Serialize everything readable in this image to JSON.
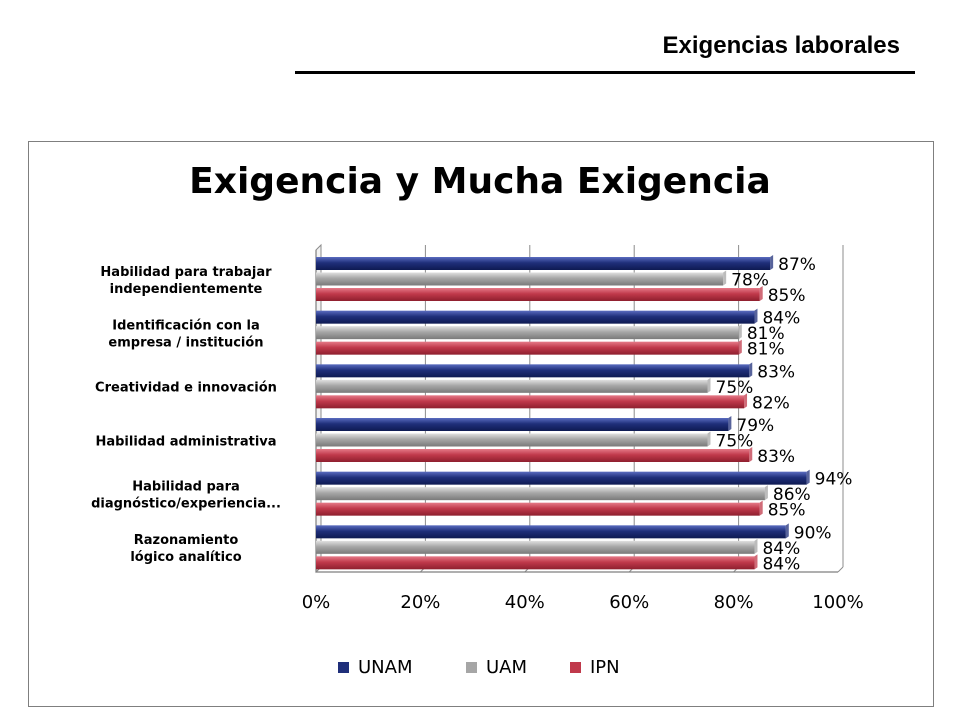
{
  "header": {
    "title": "Exigencias laborales"
  },
  "chart_data": {
    "type": "bar",
    "orientation": "horizontal",
    "title": "Exigencia y Mucha Exigencia",
    "categories": [
      [
        "Habilidad para trabajar",
        "independientemente"
      ],
      [
        "Identificación con la",
        "empresa / institución"
      ],
      [
        "Creatividad e innovación"
      ],
      [
        "Habilidad administrativa"
      ],
      [
        "Habilidad para",
        "diagnóstico/experiencia..."
      ],
      [
        "Razonamiento",
        "lógico analítico"
      ]
    ],
    "series": [
      {
        "name": "UNAM",
        "color": "#1f2f7a",
        "values": [
          87,
          84,
          83,
          79,
          94,
          90
        ]
      },
      {
        "name": "UAM",
        "color": "#a6a6a6",
        "values": [
          78,
          81,
          75,
          75,
          86,
          84
        ]
      },
      {
        "name": "IPN",
        "color": "#c0394b",
        "values": [
          85,
          81,
          82,
          83,
          85,
          84
        ]
      }
    ],
    "xlim": [
      0,
      100
    ],
    "xticks": [
      "0%",
      "20%",
      "40%",
      "60%",
      "80%",
      "100%"
    ],
    "value_suffix": "%",
    "grid": true,
    "legend_position": "bottom"
  }
}
